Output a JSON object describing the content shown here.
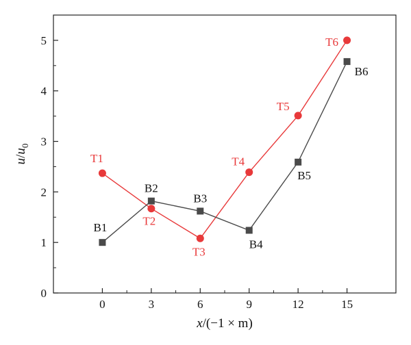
{
  "chart_data": {
    "type": "line",
    "xlabel": {
      "var": "x",
      "unit": "/(−1 × m)"
    },
    "ylabel": {
      "var": "u",
      "slash": "/",
      "base": "u",
      "sub": "0"
    },
    "xlim": [
      -3,
      18
    ],
    "ylim": [
      0,
      5.5
    ],
    "xticks": [
      0,
      3,
      6,
      9,
      12,
      15
    ],
    "yticks": [
      0,
      1,
      2,
      3,
      4,
      5
    ],
    "grid": false,
    "series": [
      {
        "color": "#e8393a",
        "marker": "circle",
        "points": [
          {
            "label": "T1",
            "x": 0,
            "y": 2.37
          },
          {
            "label": "T2",
            "x": 3,
            "y": 1.67
          },
          {
            "label": "T3",
            "x": 6,
            "y": 1.08
          },
          {
            "label": "T4",
            "x": 9,
            "y": 2.39
          },
          {
            "label": "T5",
            "x": 12,
            "y": 3.51
          },
          {
            "label": "T6",
            "x": 15,
            "y": 5.0
          }
        ]
      },
      {
        "color": "#4a4a4a",
        "marker": "square",
        "points": [
          {
            "label": "B1",
            "x": 0,
            "y": 1.0
          },
          {
            "label": "B2",
            "x": 3,
            "y": 1.82
          },
          {
            "label": "B3",
            "x": 6,
            "y": 1.62
          },
          {
            "label": "B4",
            "x": 9,
            "y": 1.24
          },
          {
            "label": "B5",
            "x": 12,
            "y": 2.59
          },
          {
            "label": "B6",
            "x": 15,
            "y": 4.58
          }
        ]
      }
    ]
  }
}
